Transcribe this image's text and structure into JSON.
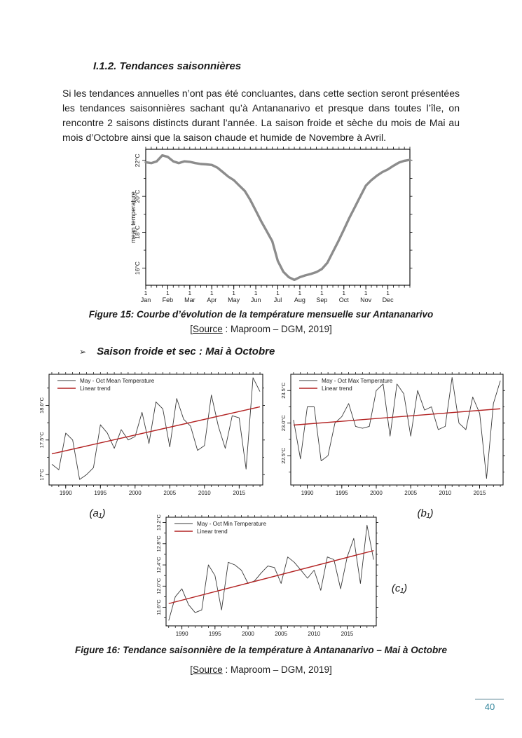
{
  "document": {
    "heading": "I.1.2. Tendances saisonnières",
    "paragraph": "Si les tendances annuelles n’ont pas été concluantes, dans cette section seront présentées les tendances saisonnières sachant qu’à Antananarivo et presque dans toutes l’île, on rencontre 2 saisons distincts durant l’année. La saison froide et sèche du mois de Mai au mois d’Octobre ainsi que la saison chaude et humide de Novembre à Avril.",
    "bullet_marker": "➢",
    "bullet_text": "Saison froide et sec : Mai à Octobre",
    "figure15_caption": "Figure 15: Courbe d’évolution de la température mensuelle sur Antananarivo",
    "figure16_caption": "Figure 16: Tendance saisonnière de la température à Antananarivo – Mai à Octobre",
    "source_prefix": "[",
    "source_label": "Source",
    "source_rest": " : Maproom – DGM, 2019]",
    "panel_label_a": "(a₁)",
    "panel_label_b": "(b₁)",
    "panel_label_c": "(c₁)",
    "page_number": "40",
    "accent_color": "#31849b"
  },
  "chart_data": [
    {
      "id": "monthly",
      "type": "line",
      "title": "",
      "xlabel": "",
      "ylabel": "mean temperature",
      "x_tick_labels": [
        "Jan",
        "Feb",
        "Mar",
        "Apr",
        "May",
        "Jun",
        "Jul",
        "Aug",
        "Sep",
        "Oct",
        "Nov",
        "Dec"
      ],
      "x_tick_sub": "1",
      "y_ticks": [
        16,
        18,
        20,
        22
      ],
      "y_tick_labels": [
        "16°C",
        "18°C",
        "20°C",
        "22°C"
      ],
      "ylim": [
        15.05,
        22.62
      ],
      "line_color": "#8c8c8c",
      "grid": false,
      "values": [
        21.9,
        21.85,
        21.95,
        22.28,
        22.2,
        21.95,
        21.85,
        21.95,
        21.92,
        21.85,
        21.8,
        21.78,
        21.75,
        21.6,
        21.35,
        21.1,
        20.9,
        20.6,
        20.3,
        19.8,
        19.2,
        18.6,
        18.05,
        17.5,
        16.4,
        15.8,
        15.5,
        15.35,
        15.5,
        15.6,
        15.68,
        15.78,
        15.95,
        16.3,
        16.9,
        17.5,
        18.15,
        18.8,
        19.4,
        20.0,
        20.6,
        20.9,
        21.15,
        21.35,
        21.5,
        21.7,
        21.88,
        21.98,
        22.03
      ]
    },
    {
      "id": "a1",
      "type": "line",
      "title": "",
      "xlabel": "",
      "ylabel": "",
      "legend": [
        "May - Oct Mean Temperature",
        "Linear trend"
      ],
      "legend_position": "top-left",
      "year_start": 1988,
      "x_ticks": [
        1990,
        1995,
        2000,
        2005,
        2010,
        2015
      ],
      "y_ticks": [
        17.0,
        17.5,
        18.0
      ],
      "y_tick_labels": [
        "17°C",
        "17.5°C",
        "18.0°C"
      ],
      "ylim": [
        16.85,
        18.45
      ],
      "series_color": "#3a3a3a",
      "trend_color": "#b22222",
      "grid": false,
      "values": [
        17.15,
        17.07,
        17.6,
        17.5,
        16.93,
        17.0,
        17.1,
        17.72,
        17.6,
        17.38,
        17.65,
        17.5,
        17.55,
        17.9,
        17.45,
        18.05,
        17.95,
        17.4,
        18.1,
        17.8,
        17.7,
        17.35,
        17.42,
        18.15,
        17.7,
        17.38,
        17.85,
        17.82,
        17.08,
        18.4,
        18.2
      ],
      "trend": [
        17.3,
        17.98
      ]
    },
    {
      "id": "b1",
      "type": "line",
      "title": "",
      "xlabel": "",
      "ylabel": "",
      "legend": [
        "May - Oct Max Temperature",
        "Linear trend"
      ],
      "legend_position": "top-left",
      "year_start": 1988,
      "x_ticks": [
        1990,
        1995,
        2000,
        2005,
        2010,
        2015
      ],
      "y_ticks": [
        22.5,
        23.0,
        23.5
      ],
      "y_tick_labels": [
        "22.5°C",
        "23.0°C",
        "23.5°C"
      ],
      "ylim": [
        22.05,
        23.75
      ],
      "series_color": "#3a3a3a",
      "trend_color": "#b22222",
      "grid": false,
      "values": [
        23.05,
        22.45,
        23.25,
        23.25,
        22.42,
        22.5,
        23.0,
        23.1,
        23.3,
        22.95,
        22.92,
        22.95,
        23.5,
        23.6,
        22.8,
        23.6,
        23.45,
        22.8,
        23.5,
        23.2,
        23.25,
        22.9,
        22.95,
        23.7,
        23.0,
        22.9,
        23.4,
        23.15,
        22.15,
        23.3,
        23.65
      ],
      "trend": [
        22.97,
        23.22
      ]
    },
    {
      "id": "c1",
      "type": "line",
      "title": "",
      "xlabel": "",
      "ylabel": "",
      "legend": [
        "May - Oct Min Temperature",
        "Linear trend"
      ],
      "legend_position": "top-left",
      "year_start": 1988,
      "x_ticks": [
        1990,
        1995,
        2000,
        2005,
        2010,
        2015
      ],
      "y_ticks": [
        11.6,
        12.0,
        12.4,
        12.8,
        13.2
      ],
      "y_tick_labels": [
        "11.6°C",
        "12.0°C",
        "12.4°C",
        "12.8°C",
        "13.2°C"
      ],
      "ylim": [
        11.25,
        13.3
      ],
      "series_color": "#3a3a3a",
      "trend_color": "#b22222",
      "grid": false,
      "values": [
        11.35,
        11.8,
        11.95,
        11.65,
        11.5,
        11.55,
        12.4,
        12.2,
        11.55,
        12.45,
        12.4,
        12.3,
        12.05,
        12.1,
        12.25,
        12.38,
        12.35,
        12.05,
        12.55,
        12.45,
        12.3,
        12.15,
        12.3,
        11.92,
        12.55,
        12.5,
        11.95,
        12.55,
        12.9,
        12.05,
        13.15,
        12.5
      ],
      "trend": [
        11.67,
        12.67
      ]
    }
  ]
}
